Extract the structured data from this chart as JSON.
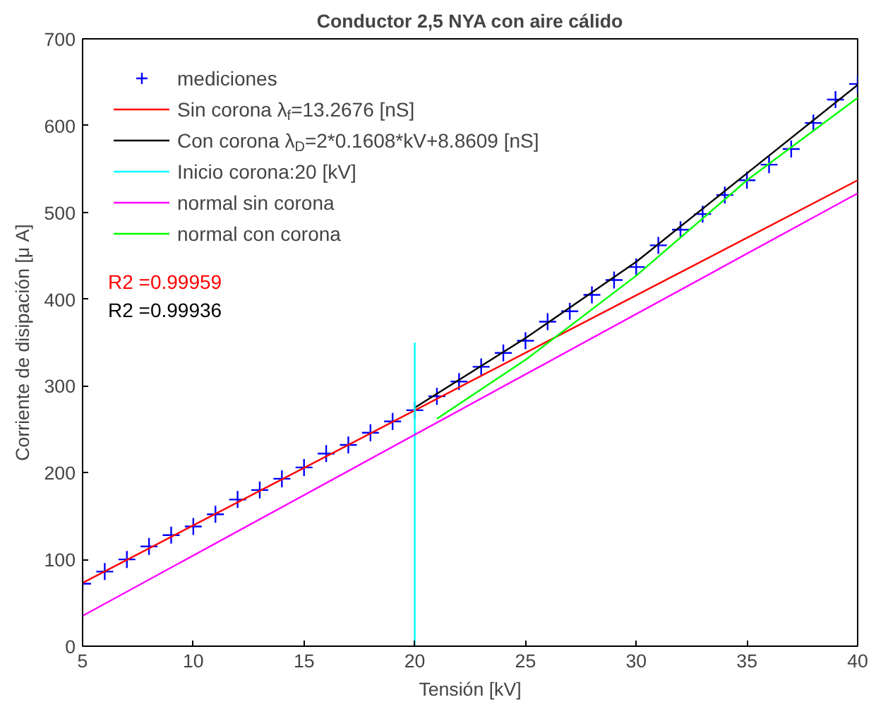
{
  "chart_data": {
    "type": "line",
    "title": "Conductor 2,5 NYA con aire cálido",
    "xlabel": "Tensión [kV]",
    "ylabel": "Corriente de disipación [μ A]",
    "xlim": [
      5,
      40
    ],
    "ylim": [
      0,
      700
    ],
    "xticks": [
      5,
      10,
      15,
      20,
      25,
      30,
      35,
      40
    ],
    "yticks": [
      0,
      100,
      200,
      300,
      400,
      500,
      600,
      700
    ],
    "grid": false,
    "legend": "top left",
    "series": [
      {
        "name": "mediciones",
        "type": "scatter",
        "marker": "cross",
        "color": "#0000ff",
        "x": [
          5,
          6,
          7,
          8,
          9,
          10,
          11,
          12,
          13,
          14,
          15,
          16,
          17,
          18,
          19,
          20,
          21,
          22,
          23,
          24,
          25,
          26,
          27,
          28,
          29,
          30,
          31,
          32,
          33,
          34,
          35,
          36,
          37,
          38,
          39,
          40
        ],
        "values": [
          72,
          86,
          100,
          115,
          128,
          138,
          152,
          169,
          180,
          193,
          206,
          222,
          232,
          246,
          259,
          272,
          288,
          305,
          322,
          338,
          352,
          374,
          386,
          405,
          422,
          437,
          462,
          480,
          498,
          520,
          537,
          555,
          573,
          603,
          630,
          648
        ]
      },
      {
        "name": "Sin corona λ$_{f}$=13.2676 [nS]",
        "color": "#ff0000",
        "x": [
          5,
          40
        ],
        "values": [
          73,
          537
        ]
      },
      {
        "name": "Con corona λ$_{D}$=2*0.1608*kV+8.8609 [nS]",
        "color": "#000000",
        "x": [
          20,
          25,
          30,
          35,
          40
        ],
        "values": [
          275,
          355,
          443,
          545,
          647
        ]
      },
      {
        "name": "Inicio corona:20 [kV]",
        "color": "#00ffff",
        "x": [
          20,
          20
        ],
        "values": [
          0,
          350
        ]
      },
      {
        "name": "normal sin corona",
        "color": "#ff00ff",
        "x": [
          5,
          40
        ],
        "values": [
          35,
          522
        ]
      },
      {
        "name": "normal con corona",
        "color": "#00ff00",
        "x": [
          21,
          25,
          30,
          35,
          40
        ],
        "values": [
          262,
          330,
          427,
          537,
          632
        ]
      }
    ],
    "annotations": [
      "R2 =0.99959",
      "R2 =0.99936"
    ]
  }
}
